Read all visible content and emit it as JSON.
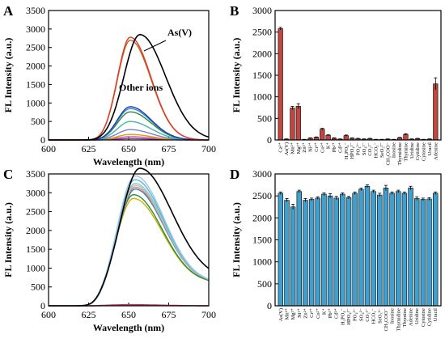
{
  "figure": {
    "panels": [
      "A",
      "B",
      "C",
      "D"
    ]
  },
  "chart_data": [
    {
      "panel": "A",
      "type": "line",
      "xlabel": "Wavelength (nm)",
      "ylabel": "FL Intensity (a.u.)",
      "xlim": [
        600,
        700
      ],
      "ylim": [
        0,
        3500
      ],
      "xticks": [
        600,
        625,
        650,
        675,
        700
      ],
      "yticks": [
        0,
        500,
        1000,
        1500,
        2000,
        2500,
        3000,
        3500
      ],
      "annotations": [
        "As(V)",
        "Other ions"
      ],
      "series": [
        {
          "name": "As(V)",
          "color": "#000000",
          "peak": 2850,
          "center": 657,
          "width": 16,
          "base": 0
        },
        {
          "color": "#e0382a",
          "peak": 2780,
          "center": 651,
          "width": 13,
          "base": 0
        },
        {
          "color": "#b7732e",
          "peak": 2700,
          "center": 651,
          "width": 13,
          "base": 0
        },
        {
          "color": "#1a3fb3",
          "peak": 900,
          "center": 651,
          "width": 13,
          "base": 0
        },
        {
          "color": "#3a86c8",
          "peak": 850,
          "center": 651,
          "width": 13,
          "base": 0
        },
        {
          "color": "#2e8b3a",
          "peak": 760,
          "center": 651,
          "width": 13,
          "base": 0
        },
        {
          "color": "#45b5a8",
          "peak": 500,
          "center": 651,
          "width": 13,
          "base": 0
        },
        {
          "color": "#7f7fd6",
          "peak": 280,
          "center": 651,
          "width": 13,
          "base": 0
        },
        {
          "color": "#d9a400",
          "peak": 150,
          "center": 651,
          "width": 13,
          "base": 0
        },
        {
          "color": "#c65fb6",
          "peak": 90,
          "center": 651,
          "width": 13,
          "base": 0
        },
        {
          "color": "#8b3a8b",
          "peak": 40,
          "center": 651,
          "width": 13,
          "base": 0
        }
      ]
    },
    {
      "panel": "B",
      "type": "bar",
      "ylabel": "FL Intensity (a.u.)",
      "ylim": [
        0,
        3000
      ],
      "yticks": [
        0,
        500,
        1000,
        1500,
        2000,
        2500,
        3000
      ],
      "bar_color": "#c0463f",
      "categories": [
        "Ca²⁺",
        "As(V)",
        "Mn²⁺",
        "Mg²⁺",
        "Zn²⁺",
        "Ni²⁺",
        "Cr³⁺",
        "Co²⁺",
        "K⁺",
        "Pb²⁺",
        "Cd²⁺",
        "H₂PO₄⁻",
        "HPO₄²⁻",
        "PO₄³⁻",
        "SO₄²⁻",
        "CO₃²⁻",
        "HCO₃⁻",
        "SeO₃²⁻",
        "CH₃COO⁻",
        "Inosine",
        "Thymidine",
        "Thymine",
        "Uridine",
        "Cytidine",
        "Cytosine",
        "Uracil",
        "Adenine"
      ],
      "values": [
        2580,
        20,
        740,
        780,
        10,
        40,
        60,
        250,
        110,
        40,
        20,
        100,
        40,
        30,
        20,
        30,
        10,
        10,
        20,
        10,
        50,
        130,
        20,
        30,
        10,
        20,
        1300
      ],
      "errors": [
        30,
        5,
        40,
        60,
        5,
        10,
        10,
        20,
        10,
        10,
        5,
        15,
        8,
        8,
        5,
        8,
        5,
        5,
        5,
        5,
        10,
        15,
        5,
        8,
        5,
        5,
        140
      ]
    },
    {
      "panel": "C",
      "type": "line",
      "xlabel": "Wavelength (nm)",
      "ylabel": "FL Intensity (a.u.)",
      "xlim": [
        600,
        700
      ],
      "ylim": [
        0,
        3500
      ],
      "xticks": [
        600,
        625,
        650,
        675,
        700
      ],
      "yticks": [
        0,
        500,
        1000,
        1500,
        2000,
        2500,
        3000,
        3500
      ],
      "series": [
        {
          "color": "#000000",
          "peak": 2950,
          "center": 657,
          "width": 20,
          "base": 700
        },
        {
          "color": "#9fc5e8",
          "peak": 2850,
          "center": 654,
          "width": 18,
          "base": 600
        },
        {
          "color": "#5db3d8",
          "peak": 2750,
          "center": 654,
          "width": 18,
          "base": 600
        },
        {
          "color": "#7fd0c0",
          "peak": 2650,
          "center": 654,
          "width": 18,
          "base": 600
        },
        {
          "color": "#c0c0c0",
          "peak": 2600,
          "center": 654,
          "width": 18,
          "base": 600
        },
        {
          "color": "#e08070",
          "peak": 2550,
          "center": 654,
          "width": 18,
          "base": 600
        },
        {
          "color": "#3a7fc0",
          "peak": 2500,
          "center": 654,
          "width": 18,
          "base": 600
        },
        {
          "color": "#2e8b3a",
          "peak": 2350,
          "center": 653,
          "width": 18,
          "base": 600
        },
        {
          "color": "#c8b400",
          "peak": 2250,
          "center": 653,
          "width": 18,
          "base": 600
        },
        {
          "color": "#e0382a",
          "peak": 10,
          "center": 650,
          "width": 20,
          "base": 0
        },
        {
          "color": "#8b3a8b",
          "peak": 30,
          "center": 650,
          "width": 20,
          "base": 0
        }
      ]
    },
    {
      "panel": "D",
      "type": "bar",
      "ylabel": "FL Intensity (a.u.)",
      "ylim": [
        0,
        3000
      ],
      "yticks": [
        0,
        500,
        1000,
        1500,
        2000,
        2500,
        3000
      ],
      "bar_color": "#3fa0cf",
      "categories": [
        "As(V)",
        "Mn²⁺",
        "Mg²⁺",
        "Ni²⁺",
        "Zn²⁺",
        "Cr³⁺",
        "Co²⁺",
        "K⁺",
        "Pb²⁺",
        "Cd²⁺",
        "H₂PO₄⁻",
        "HPO₄²⁻",
        "PO₄³⁻",
        "SO₄²⁻",
        "CO₃²⁻",
        "HCO₃⁻",
        "SeO₃²⁻",
        "CH₃COO⁻",
        "Inosine",
        "Thymidine",
        "Thymine",
        "Adenine",
        "Uridine",
        "Cytosine",
        "Cytidine",
        "Uracil"
      ],
      "values": [
        2560,
        2400,
        2250,
        2600,
        2400,
        2420,
        2450,
        2540,
        2500,
        2450,
        2540,
        2460,
        2560,
        2650,
        2720,
        2600,
        2520,
        2680,
        2560,
        2600,
        2560,
        2680,
        2440,
        2420,
        2430,
        2560
      ],
      "errors": [
        30,
        40,
        60,
        30,
        40,
        30,
        30,
        30,
        50,
        40,
        30,
        30,
        30,
        30,
        30,
        30,
        40,
        60,
        30,
        30,
        30,
        40,
        40,
        30,
        30,
        30
      ]
    }
  ]
}
